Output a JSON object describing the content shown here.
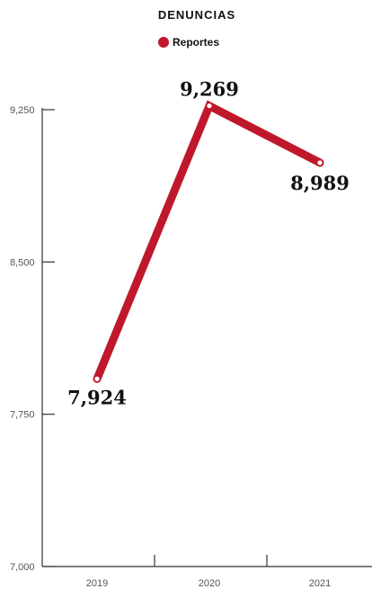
{
  "chart_data": {
    "type": "line",
    "title": "DENUNCIAS",
    "xlabel": "",
    "ylabel": "",
    "categories": [
      "2019",
      "2020",
      "2021"
    ],
    "series": [
      {
        "name": "Reportes",
        "color": "#c0182b",
        "values": [
          7924,
          9269,
          8989
        ],
        "value_labels": [
          "7,924",
          "9,269",
          "8,989"
        ]
      }
    ],
    "ylim": [
      7000,
      9250
    ],
    "yticks": [
      {
        "value": 7000,
        "label": "7,000"
      },
      {
        "value": 7750,
        "label": "7,750"
      },
      {
        "value": 8500,
        "label": "8,500"
      },
      {
        "value": 9250,
        "label": "9,250"
      }
    ],
    "grid": false,
    "legend_position": "top-center"
  }
}
